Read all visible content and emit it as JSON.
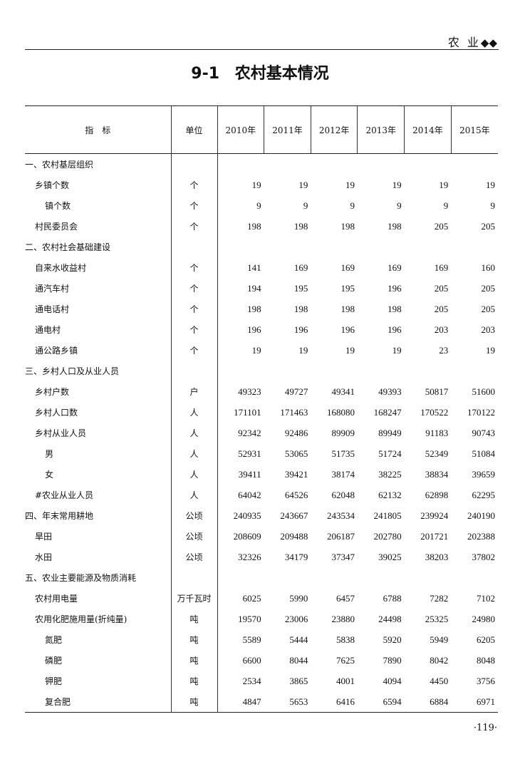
{
  "header": {
    "section": "农 业",
    "ornament": "◆◆"
  },
  "title": "9-1  农村基本情况",
  "table": {
    "columns": [
      "指　标",
      "单位",
      "2010年",
      "2011年",
      "2012年",
      "2013年",
      "2014年",
      "2015年"
    ],
    "rows": [
      {
        "label": "一、农村基层组织",
        "indent": 0,
        "unit": "",
        "values": [
          "",
          "",
          "",
          "",
          "",
          ""
        ]
      },
      {
        "label": "乡镇个数",
        "indent": 1,
        "unit": "个",
        "values": [
          "19",
          "19",
          "19",
          "19",
          "19",
          "19"
        ]
      },
      {
        "label": "镇个数",
        "indent": 2,
        "unit": "个",
        "values": [
          "9",
          "9",
          "9",
          "9",
          "9",
          "9"
        ]
      },
      {
        "label": "村民委员会",
        "indent": 1,
        "unit": "个",
        "values": [
          "198",
          "198",
          "198",
          "198",
          "205",
          "205"
        ]
      },
      {
        "label": "二、农村社会基础建设",
        "indent": 0,
        "unit": "",
        "values": [
          "",
          "",
          "",
          "",
          "",
          ""
        ]
      },
      {
        "label": "自来水收益村",
        "indent": 1,
        "unit": "个",
        "values": [
          "141",
          "169",
          "169",
          "169",
          "169",
          "160"
        ]
      },
      {
        "label": "通汽车村",
        "indent": 1,
        "unit": "个",
        "values": [
          "194",
          "195",
          "195",
          "196",
          "205",
          "205"
        ]
      },
      {
        "label": "通电话村",
        "indent": 1,
        "unit": "个",
        "values": [
          "198",
          "198",
          "198",
          "198",
          "205",
          "205"
        ]
      },
      {
        "label": "通电村",
        "indent": 1,
        "unit": "个",
        "values": [
          "196",
          "196",
          "196",
          "196",
          "203",
          "203"
        ]
      },
      {
        "label": "通公路乡镇",
        "indent": 1,
        "unit": "个",
        "values": [
          "19",
          "19",
          "19",
          "19",
          "23",
          "19"
        ]
      },
      {
        "label": "三、乡村人口及从业人员",
        "indent": 0,
        "unit": "",
        "values": [
          "",
          "",
          "",
          "",
          "",
          ""
        ]
      },
      {
        "label": "乡村户数",
        "indent": 1,
        "unit": "户",
        "values": [
          "49323",
          "49727",
          "49341",
          "49393",
          "50817",
          "51600"
        ]
      },
      {
        "label": "乡村人口数",
        "indent": 1,
        "unit": "人",
        "values": [
          "171101",
          "171463",
          "168080",
          "168247",
          "170522",
          "170122"
        ]
      },
      {
        "label": "乡村从业人员",
        "indent": 1,
        "unit": "人",
        "values": [
          "92342",
          "92486",
          "89909",
          "89949",
          "91183",
          "90743"
        ]
      },
      {
        "label": "男",
        "indent": 2,
        "unit": "人",
        "values": [
          "52931",
          "53065",
          "51735",
          "51724",
          "52349",
          "51084"
        ]
      },
      {
        "label": "女",
        "indent": 2,
        "unit": "人",
        "values": [
          "39411",
          "39421",
          "38174",
          "38225",
          "38834",
          "39659"
        ]
      },
      {
        "label": "#农业从业人员",
        "indent": 1,
        "unit": "人",
        "values": [
          "64042",
          "64526",
          "62048",
          "62132",
          "62898",
          "62295"
        ]
      },
      {
        "label": "四、年末常用耕地",
        "indent": 0,
        "unit": "公顷",
        "values": [
          "240935",
          "243667",
          "243534",
          "241805",
          "239924",
          "240190"
        ]
      },
      {
        "label": "旱田",
        "indent": 1,
        "unit": "公顷",
        "values": [
          "208609",
          "209488",
          "206187",
          "202780",
          "201721",
          "202388"
        ]
      },
      {
        "label": "水田",
        "indent": 1,
        "unit": "公顷",
        "values": [
          "32326",
          "34179",
          "37347",
          "39025",
          "38203",
          "37802"
        ]
      },
      {
        "label": "五、农业主要能源及物质消耗",
        "indent": 0,
        "unit": "",
        "values": [
          "",
          "",
          "",
          "",
          "",
          ""
        ]
      },
      {
        "label": "农村用电量",
        "indent": 1,
        "unit": "万千瓦时",
        "values": [
          "6025",
          "5990",
          "6457",
          "6788",
          "7282",
          "7102"
        ]
      },
      {
        "label": "农用化肥施用量(折纯量)",
        "indent": 1,
        "unit": "吨",
        "values": [
          "19570",
          "23006",
          "23880",
          "24498",
          "25325",
          "24980"
        ]
      },
      {
        "label": "氮肥",
        "indent": 2,
        "unit": "吨",
        "values": [
          "5589",
          "5444",
          "5838",
          "5920",
          "5949",
          "6205"
        ]
      },
      {
        "label": "磷肥",
        "indent": 2,
        "unit": "吨",
        "values": [
          "6600",
          "8044",
          "7625",
          "7890",
          "8042",
          "8048"
        ]
      },
      {
        "label": "钾肥",
        "indent": 2,
        "unit": "吨",
        "values": [
          "2534",
          "3865",
          "4001",
          "4094",
          "4450",
          "3756"
        ]
      },
      {
        "label": "复合肥",
        "indent": 2,
        "unit": "吨",
        "values": [
          "4847",
          "5653",
          "6416",
          "6594",
          "6884",
          "6971"
        ]
      }
    ]
  },
  "page_number": "·119·"
}
